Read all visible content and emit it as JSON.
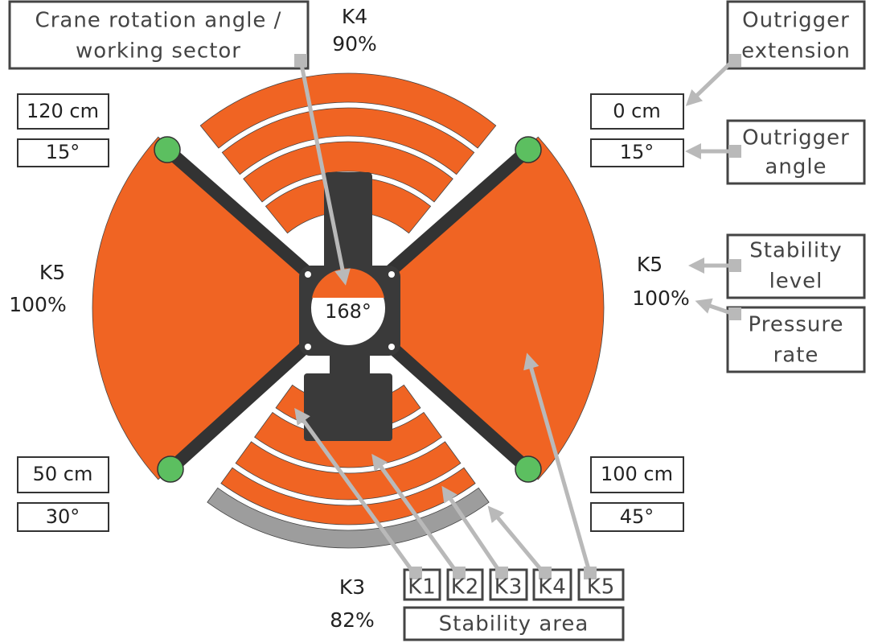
{
  "callouts": {
    "rotation": [
      "Crane rotation angle /",
      "working sector"
    ],
    "outrigger_extension": [
      "Outrigger",
      "extension"
    ],
    "outrigger_angle": [
      "Outrigger",
      "angle"
    ],
    "stability_level": [
      "Stability",
      "level"
    ],
    "pressure_rate": [
      "Pressure",
      "rate"
    ],
    "stability_area": "Stability area"
  },
  "legend": [
    "K1",
    "K2",
    "K3",
    "K4",
    "K5"
  ],
  "sectors": {
    "top": [
      "K4",
      "90%"
    ],
    "left": [
      "K5",
      "100%"
    ],
    "right": [
      "K5",
      "100%"
    ],
    "bottom": [
      "K3",
      "82%"
    ]
  },
  "outriggers": {
    "top_left": [
      "120 cm",
      "15°"
    ],
    "top_right": [
      "0 cm",
      "15°"
    ],
    "bottom_left": [
      "50 cm",
      "30°"
    ],
    "bottom_right": [
      "100 cm",
      "45°"
    ]
  },
  "rotation_angle": "168°"
}
